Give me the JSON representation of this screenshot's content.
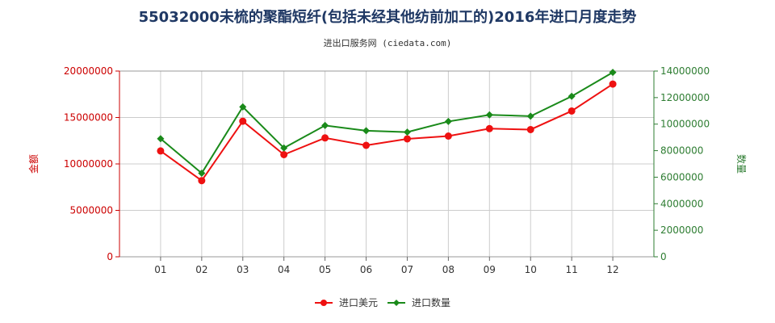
{
  "chart_data": {
    "type": "line",
    "title": "55032000未梳的聚酯短纤(包括未经其他纺前加工的)2016年进口月度走势",
    "subtitle": "进出口服务网 (ciedata.com)",
    "categories": [
      "01",
      "02",
      "03",
      "04",
      "05",
      "06",
      "07",
      "08",
      "09",
      "10",
      "11",
      "12"
    ],
    "y_left": {
      "label": "金额",
      "ylim": [
        0,
        20000000
      ],
      "ticks": [
        "0",
        "5000000",
        "10000000",
        "15000000",
        "20000000"
      ],
      "tick_values": [
        0,
        5000000,
        10000000,
        15000000,
        20000000
      ]
    },
    "y_right": {
      "label": "数量",
      "ylim": [
        0,
        14000000
      ],
      "ticks": [
        "0",
        "2000000",
        "4000000",
        "6000000",
        "8000000",
        "10000000",
        "12000000",
        "14000000"
      ],
      "tick_values": [
        0,
        2000000,
        4000000,
        6000000,
        8000000,
        10000000,
        12000000,
        14000000
      ]
    },
    "series": [
      {
        "name": "进口美元",
        "axis": "left",
        "color": "#ee1111",
        "marker": "circle",
        "values": [
          11400000,
          8200000,
          14600000,
          11000000,
          12800000,
          12000000,
          12700000,
          13000000,
          13800000,
          13700000,
          15700000,
          18600000
        ]
      },
      {
        "name": "进口数量",
        "axis": "right",
        "color": "#1a8a1a",
        "marker": "diamond",
        "values": [
          8900000,
          6300000,
          11300000,
          8200000,
          9900000,
          9500000,
          9400000,
          10200000,
          10700000,
          10600000,
          12100000,
          13900000
        ]
      }
    ],
    "grid": true,
    "legend": "bottom-center"
  }
}
